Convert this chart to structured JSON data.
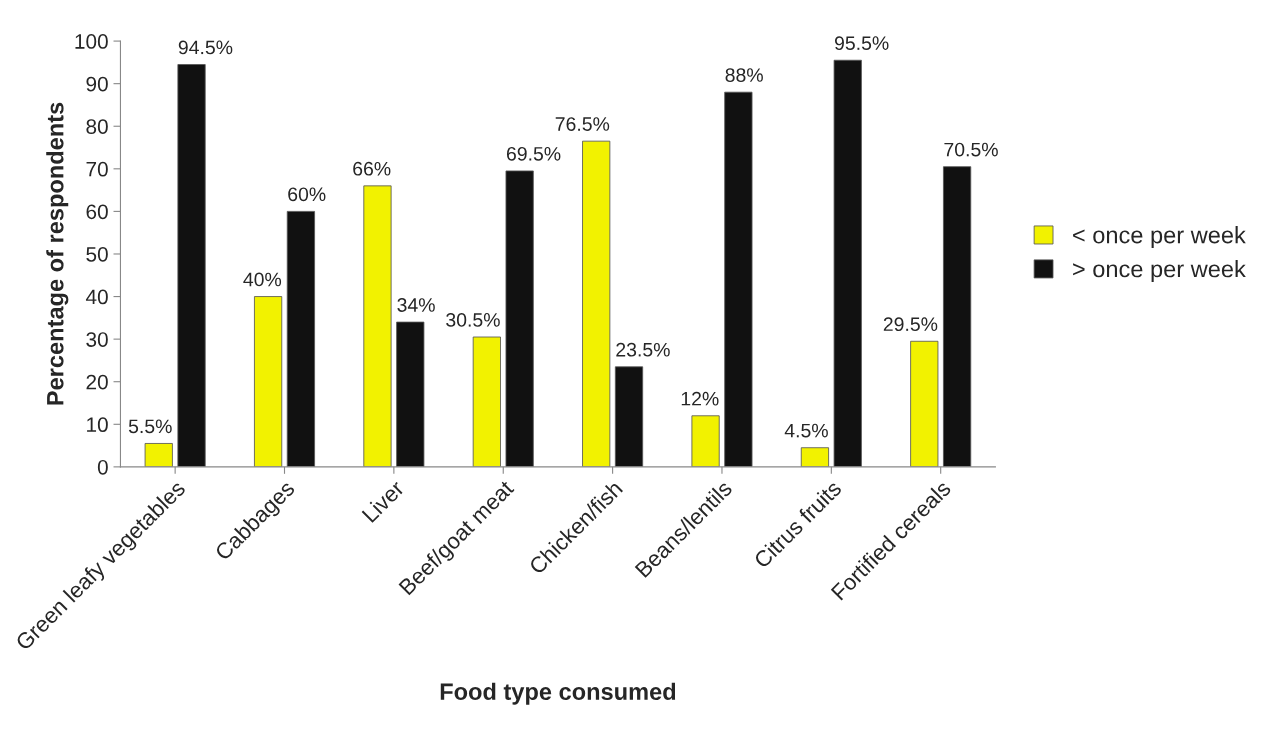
{
  "chart_data": {
    "type": "bar",
    "xlabel": "Food type consumed",
    "ylabel": "Percentage of respondents",
    "categories": [
      "Green leafy vegetables",
      "Cabbages",
      "Liver",
      "Beef/goat meat",
      "Chicken/fish",
      "Beans/lentils",
      "Citrus fruits",
      "Fortified cereals"
    ],
    "series": [
      {
        "name": "< once per week",
        "color": "#f2f200",
        "values": [
          5.5,
          40,
          66,
          30.5,
          76.5,
          12,
          4.5,
          29.5
        ],
        "value_labels": [
          "5.5%",
          "40%",
          "66%",
          "30.5%",
          "76.5%",
          "12%",
          "4.5%",
          "29.5%"
        ]
      },
      {
        "name": "> once per week",
        "color": "#111111",
        "values": [
          94.5,
          60,
          34,
          69.5,
          23.5,
          88,
          95.5,
          70.5
        ],
        "value_labels": [
          "94.5%",
          "60%",
          "34%",
          "69.5%",
          "23.5%",
          "88%",
          "95.5%",
          "70.5%"
        ]
      }
    ],
    "ylim": [
      0,
      100
    ],
    "yticks": [
      0,
      10,
      20,
      30,
      40,
      50,
      60,
      70,
      80,
      90,
      100
    ],
    "grid": false,
    "legend": "right"
  }
}
